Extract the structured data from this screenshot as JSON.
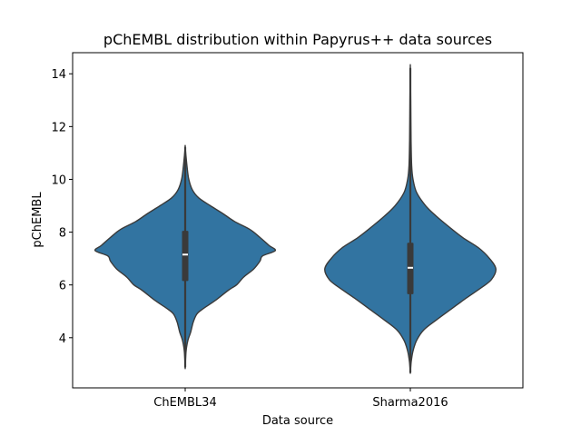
{
  "chart_data": {
    "type": "violin",
    "title": "pChEMBL distribution within Papyrus++ data sources",
    "xlabel": "Data source",
    "ylabel": "pChEMBL",
    "ylim": [
      2.1,
      14.8
    ],
    "yticks": [
      4,
      6,
      8,
      10,
      12,
      14
    ],
    "categories": [
      "ChEMBL34",
      "Sharma2016"
    ],
    "color": "#3274a1",
    "edge_color": "#3a3a3a",
    "grid": false,
    "legend": "none",
    "series": [
      {
        "category": "ChEMBL34",
        "min": 2.9,
        "q1": 6.15,
        "median": 7.15,
        "q3": 8.05,
        "max": 11.2,
        "density": [
          [
            2.9,
            0.0
          ],
          [
            3.5,
            0.01
          ],
          [
            3.9,
            0.03
          ],
          [
            4.2,
            0.06
          ],
          [
            4.6,
            0.09
          ],
          [
            4.9,
            0.13
          ],
          [
            5.1,
            0.2
          ],
          [
            5.4,
            0.33
          ],
          [
            5.8,
            0.48
          ],
          [
            6.0,
            0.57
          ],
          [
            6.3,
            0.65
          ],
          [
            6.6,
            0.76
          ],
          [
            6.9,
            0.83
          ],
          [
            7.1,
            0.86
          ],
          [
            7.3,
            1.0
          ],
          [
            7.5,
            0.93
          ],
          [
            7.8,
            0.83
          ],
          [
            8.1,
            0.72
          ],
          [
            8.4,
            0.55
          ],
          [
            8.7,
            0.42
          ],
          [
            9.0,
            0.28
          ],
          [
            9.3,
            0.15
          ],
          [
            9.6,
            0.08
          ],
          [
            10.0,
            0.04
          ],
          [
            10.5,
            0.02
          ],
          [
            11.2,
            0.0
          ]
        ]
      },
      {
        "category": "Sharma2016",
        "min": 2.7,
        "q1": 5.65,
        "median": 6.65,
        "q3": 7.6,
        "max": 14.2,
        "density": [
          [
            2.7,
            0.0
          ],
          [
            3.1,
            0.01
          ],
          [
            3.5,
            0.03
          ],
          [
            3.9,
            0.07
          ],
          [
            4.3,
            0.15
          ],
          [
            4.7,
            0.3
          ],
          [
            5.1,
            0.46
          ],
          [
            5.5,
            0.62
          ],
          [
            5.9,
            0.79
          ],
          [
            6.2,
            0.9
          ],
          [
            6.6,
            0.95
          ],
          [
            7.0,
            0.88
          ],
          [
            7.4,
            0.76
          ],
          [
            7.8,
            0.58
          ],
          [
            8.2,
            0.43
          ],
          [
            8.6,
            0.29
          ],
          [
            9.0,
            0.17
          ],
          [
            9.5,
            0.07
          ],
          [
            10.0,
            0.03
          ],
          [
            10.5,
            0.015
          ],
          [
            11.5,
            0.008
          ],
          [
            13.0,
            0.004
          ],
          [
            14.2,
            0.0
          ]
        ]
      }
    ]
  }
}
